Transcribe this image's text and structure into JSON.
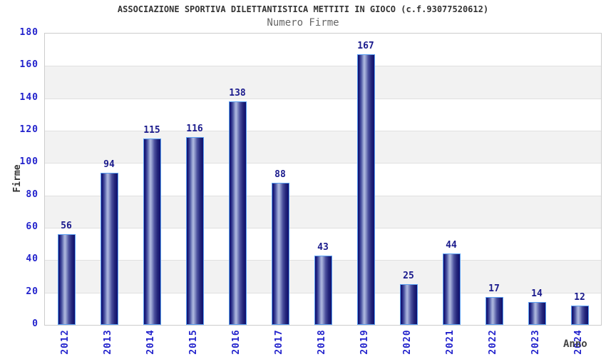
{
  "header": {
    "title": "ASSOCIAZIONE SPORTIVA DILETTANTISTICA METTITI IN GIOCO (c.f.93077520612)",
    "subtitle": "Numero Firme"
  },
  "chart_data": {
    "type": "bar",
    "title": "Numero Firme",
    "categories": [
      "2012",
      "2013",
      "2014",
      "2015",
      "2016",
      "2017",
      "2018",
      "2019",
      "2020",
      "2021",
      "2022",
      "2023",
      "2024"
    ],
    "values": [
      56,
      94,
      115,
      116,
      138,
      88,
      43,
      167,
      25,
      44,
      17,
      14,
      12
    ],
    "xlabel": "Anno",
    "ylabel": "Firme",
    "ylim": [
      0,
      180
    ],
    "ytick_step": 20,
    "yticks": [
      0,
      20,
      40,
      60,
      80,
      100,
      120,
      140,
      160,
      180
    ],
    "legend": "none",
    "grid": "horizontal-bands-alternating",
    "colors": {
      "bar_dark": "#0f0f6e",
      "bar_highlight": "#aeb8de",
      "bar_border": "#5ba0f2",
      "tick_label": "#2222cc",
      "value_label": "#1a1a8c",
      "band_gray": "#f2f2f2",
      "grid_line": "#e0e0e0",
      "plot_border": "#cccccc",
      "title": "#333333",
      "subtitle": "#666666",
      "axis_title": "#333333"
    }
  }
}
